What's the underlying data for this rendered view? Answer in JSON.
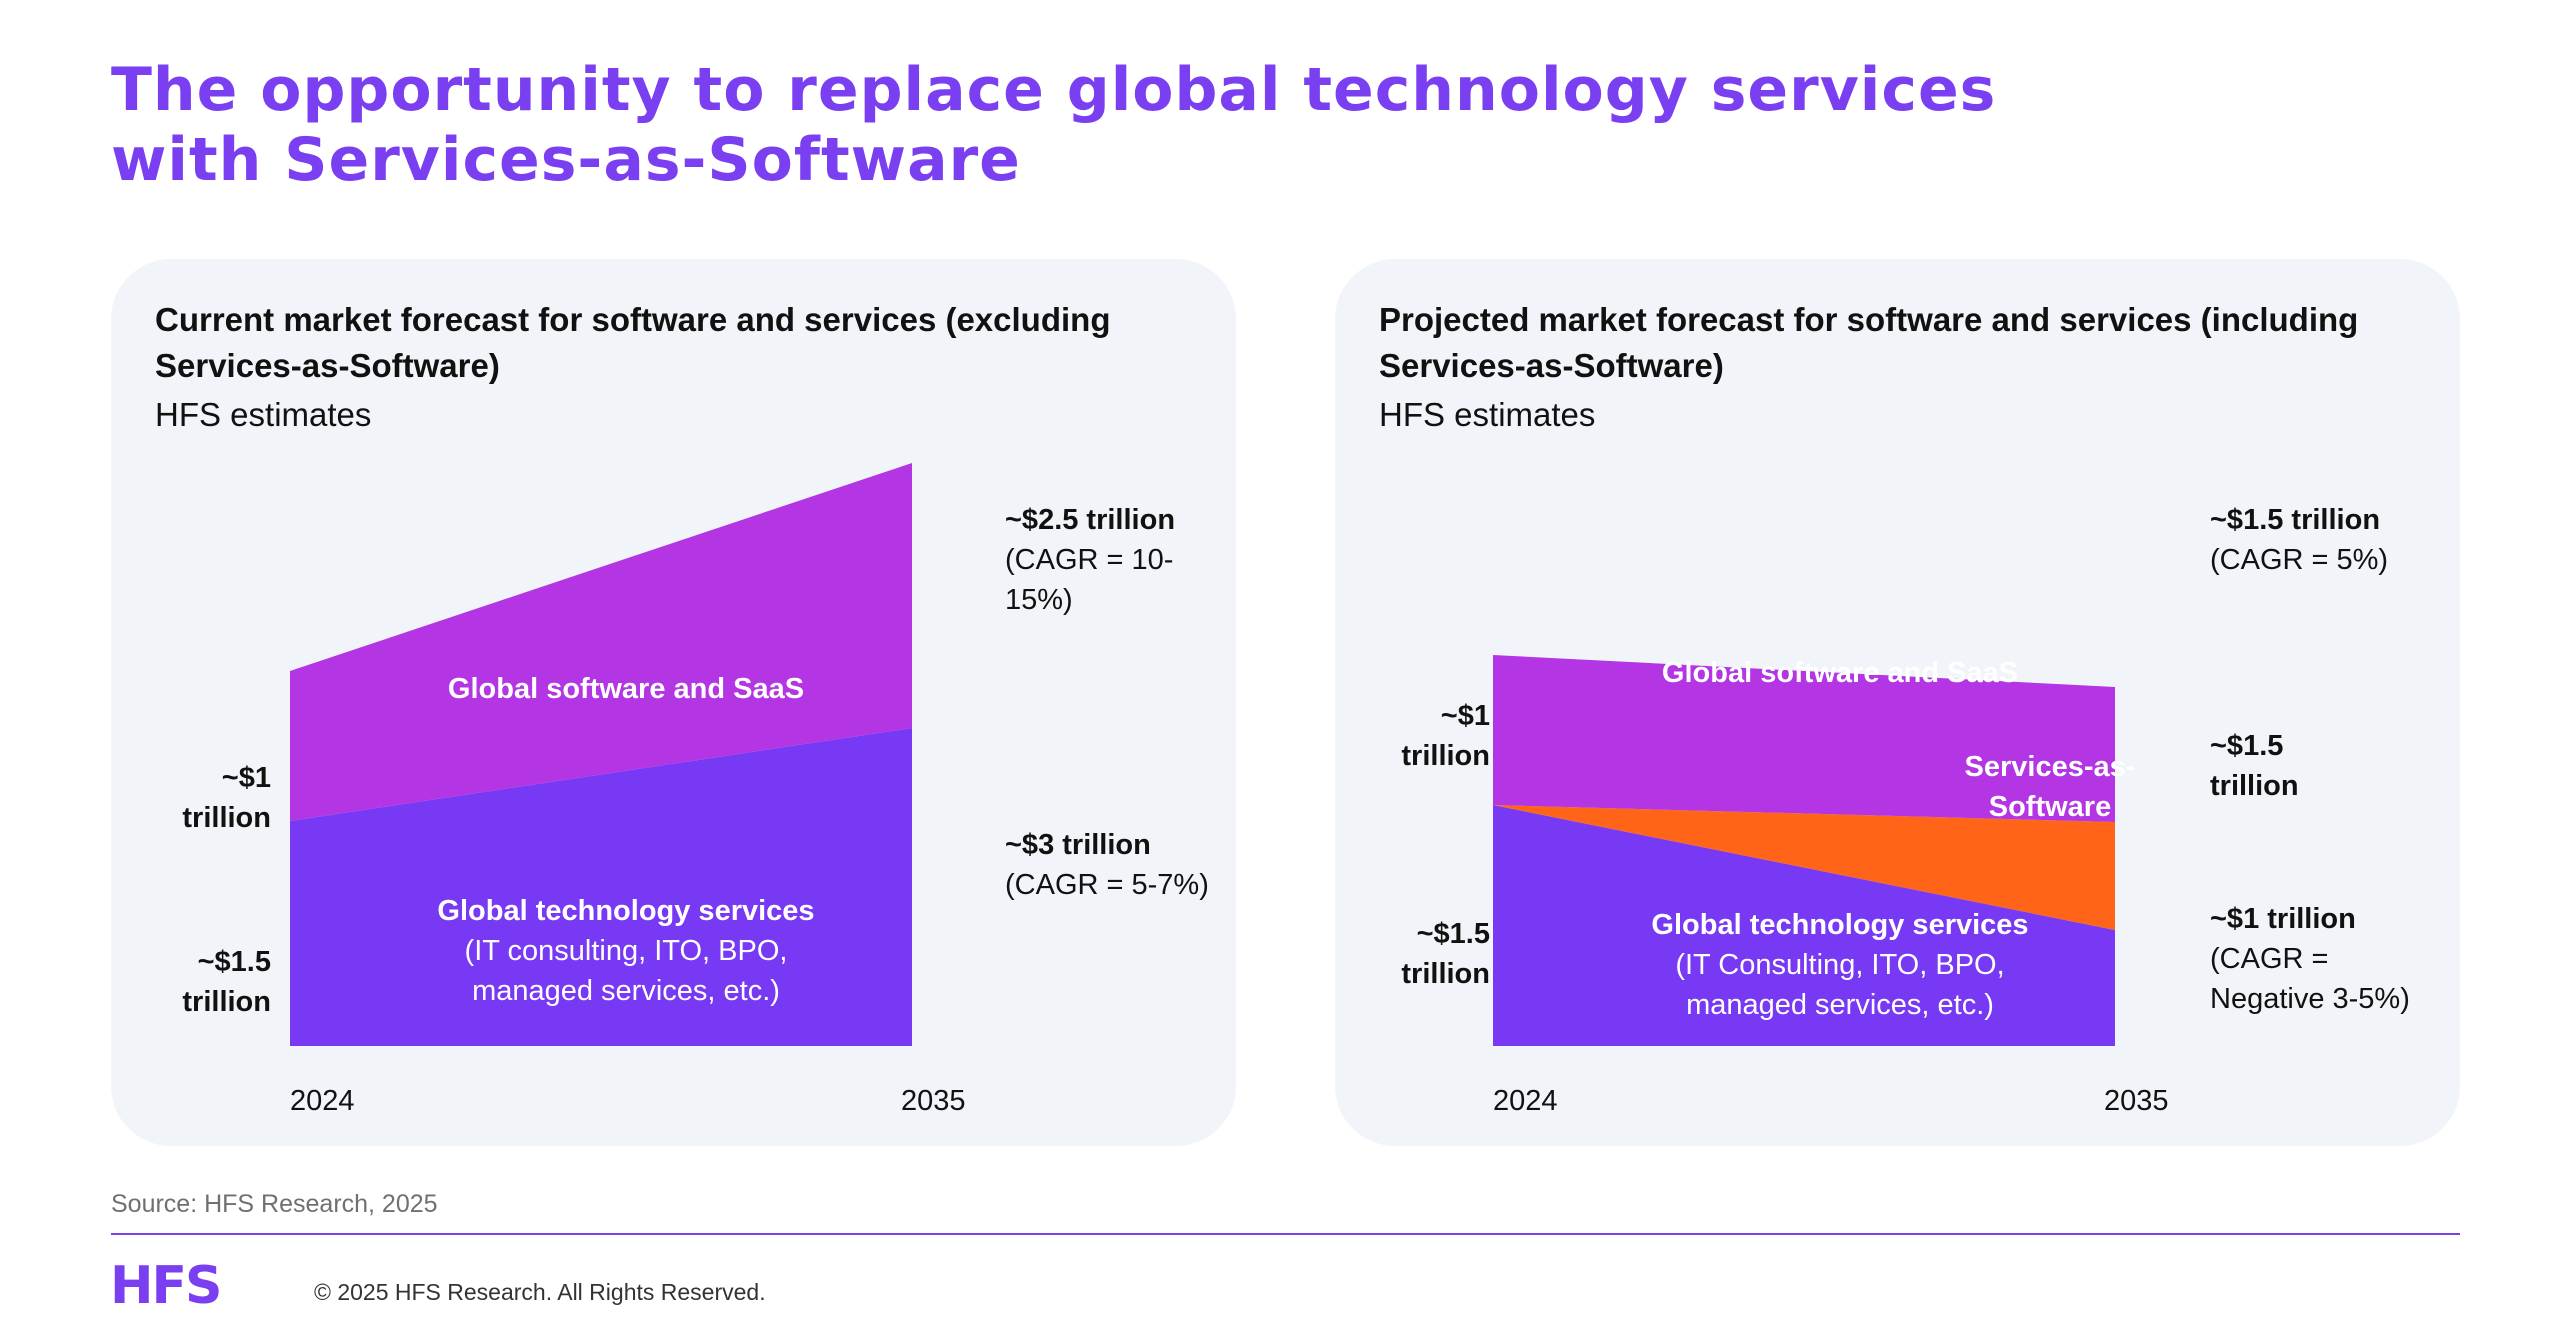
{
  "title": {
    "line1": "The opportunity to replace global technology services",
    "line2": "with Services-as-Software"
  },
  "colors": {
    "brand_purple": "#7a3ff0",
    "software_magenta": "#b335e3",
    "services_violet": "#7739f3",
    "services_as_software_orange": "#ff6418",
    "panel_bg": "#f1f4f8"
  },
  "left_panel": {
    "heading": "Current market forecast for software and services (excluding Services-as-Software)",
    "subheading": "HFS estimates",
    "labels": {
      "software_start": {
        "value": "~$1",
        "unit": "trillion"
      },
      "services_start": {
        "value": "~$1.5",
        "unit": "trillion"
      },
      "software_end": {
        "line1": "~$2.5 trillion",
        "line2": "(CAGR = 10-",
        "line3": "15%)"
      },
      "services_end": {
        "line1": "~$3 trillion",
        "line2": "(CAGR = 5-7%)"
      },
      "software_segment": "Global software and SaaS",
      "services_segment": {
        "line1": "Global technology services",
        "line2": "(IT consulting, ITO, BPO,",
        "line3": "managed services, etc.)"
      }
    }
  },
  "right_panel": {
    "heading": "Projected market forecast for software and services (including Services-as-Software)",
    "subheading": "HFS estimates",
    "labels": {
      "software_start": {
        "value": "~$1",
        "unit": "trillion"
      },
      "services_start": {
        "value": "~$1.5",
        "unit": "trillion"
      },
      "software_end": {
        "line1": "~$1.5 trillion",
        "line2": "(CAGR = 5%)"
      },
      "sas_end": {
        "line1": "~$1.5",
        "line2": "trillion"
      },
      "services_end": {
        "line1": "~$1 trillion",
        "line2": "(CAGR =",
        "line3": "Negative 3-5%)"
      },
      "software_segment": "Global software and SaaS",
      "sas_segment": {
        "line1": "Services-as-",
        "line2": "Software"
      },
      "services_segment": {
        "line1": "Global technology services",
        "line2": "(IT Consulting, ITO, BPO,",
        "line3": "managed services, etc.)"
      }
    }
  },
  "chart_data": [
    {
      "type": "area",
      "stacked": true,
      "unit": "trillion USD",
      "x": [
        "2024",
        "2035"
      ],
      "series": [
        {
          "name": "Global technology services",
          "values": [
            1.5,
            3
          ]
        },
        {
          "name": "Global software and SaaS",
          "values": [
            1,
            2.5
          ]
        }
      ]
    },
    {
      "type": "area",
      "stacked": true,
      "unit": "trillion USD",
      "x": [
        "2024",
        "2035"
      ],
      "series": [
        {
          "name": "Global technology services",
          "values": [
            1.5,
            1
          ]
        },
        {
          "name": "Services-as-Software",
          "values": [
            0,
            1.5
          ]
        },
        {
          "name": "Global software and SaaS",
          "values": [
            1,
            1.5
          ]
        }
      ]
    }
  ],
  "footer": {
    "source": "Source: HFS Research, 2025",
    "logo": "HFS",
    "copyright": "© 2025 HFS Research. All Rights Reserved."
  }
}
